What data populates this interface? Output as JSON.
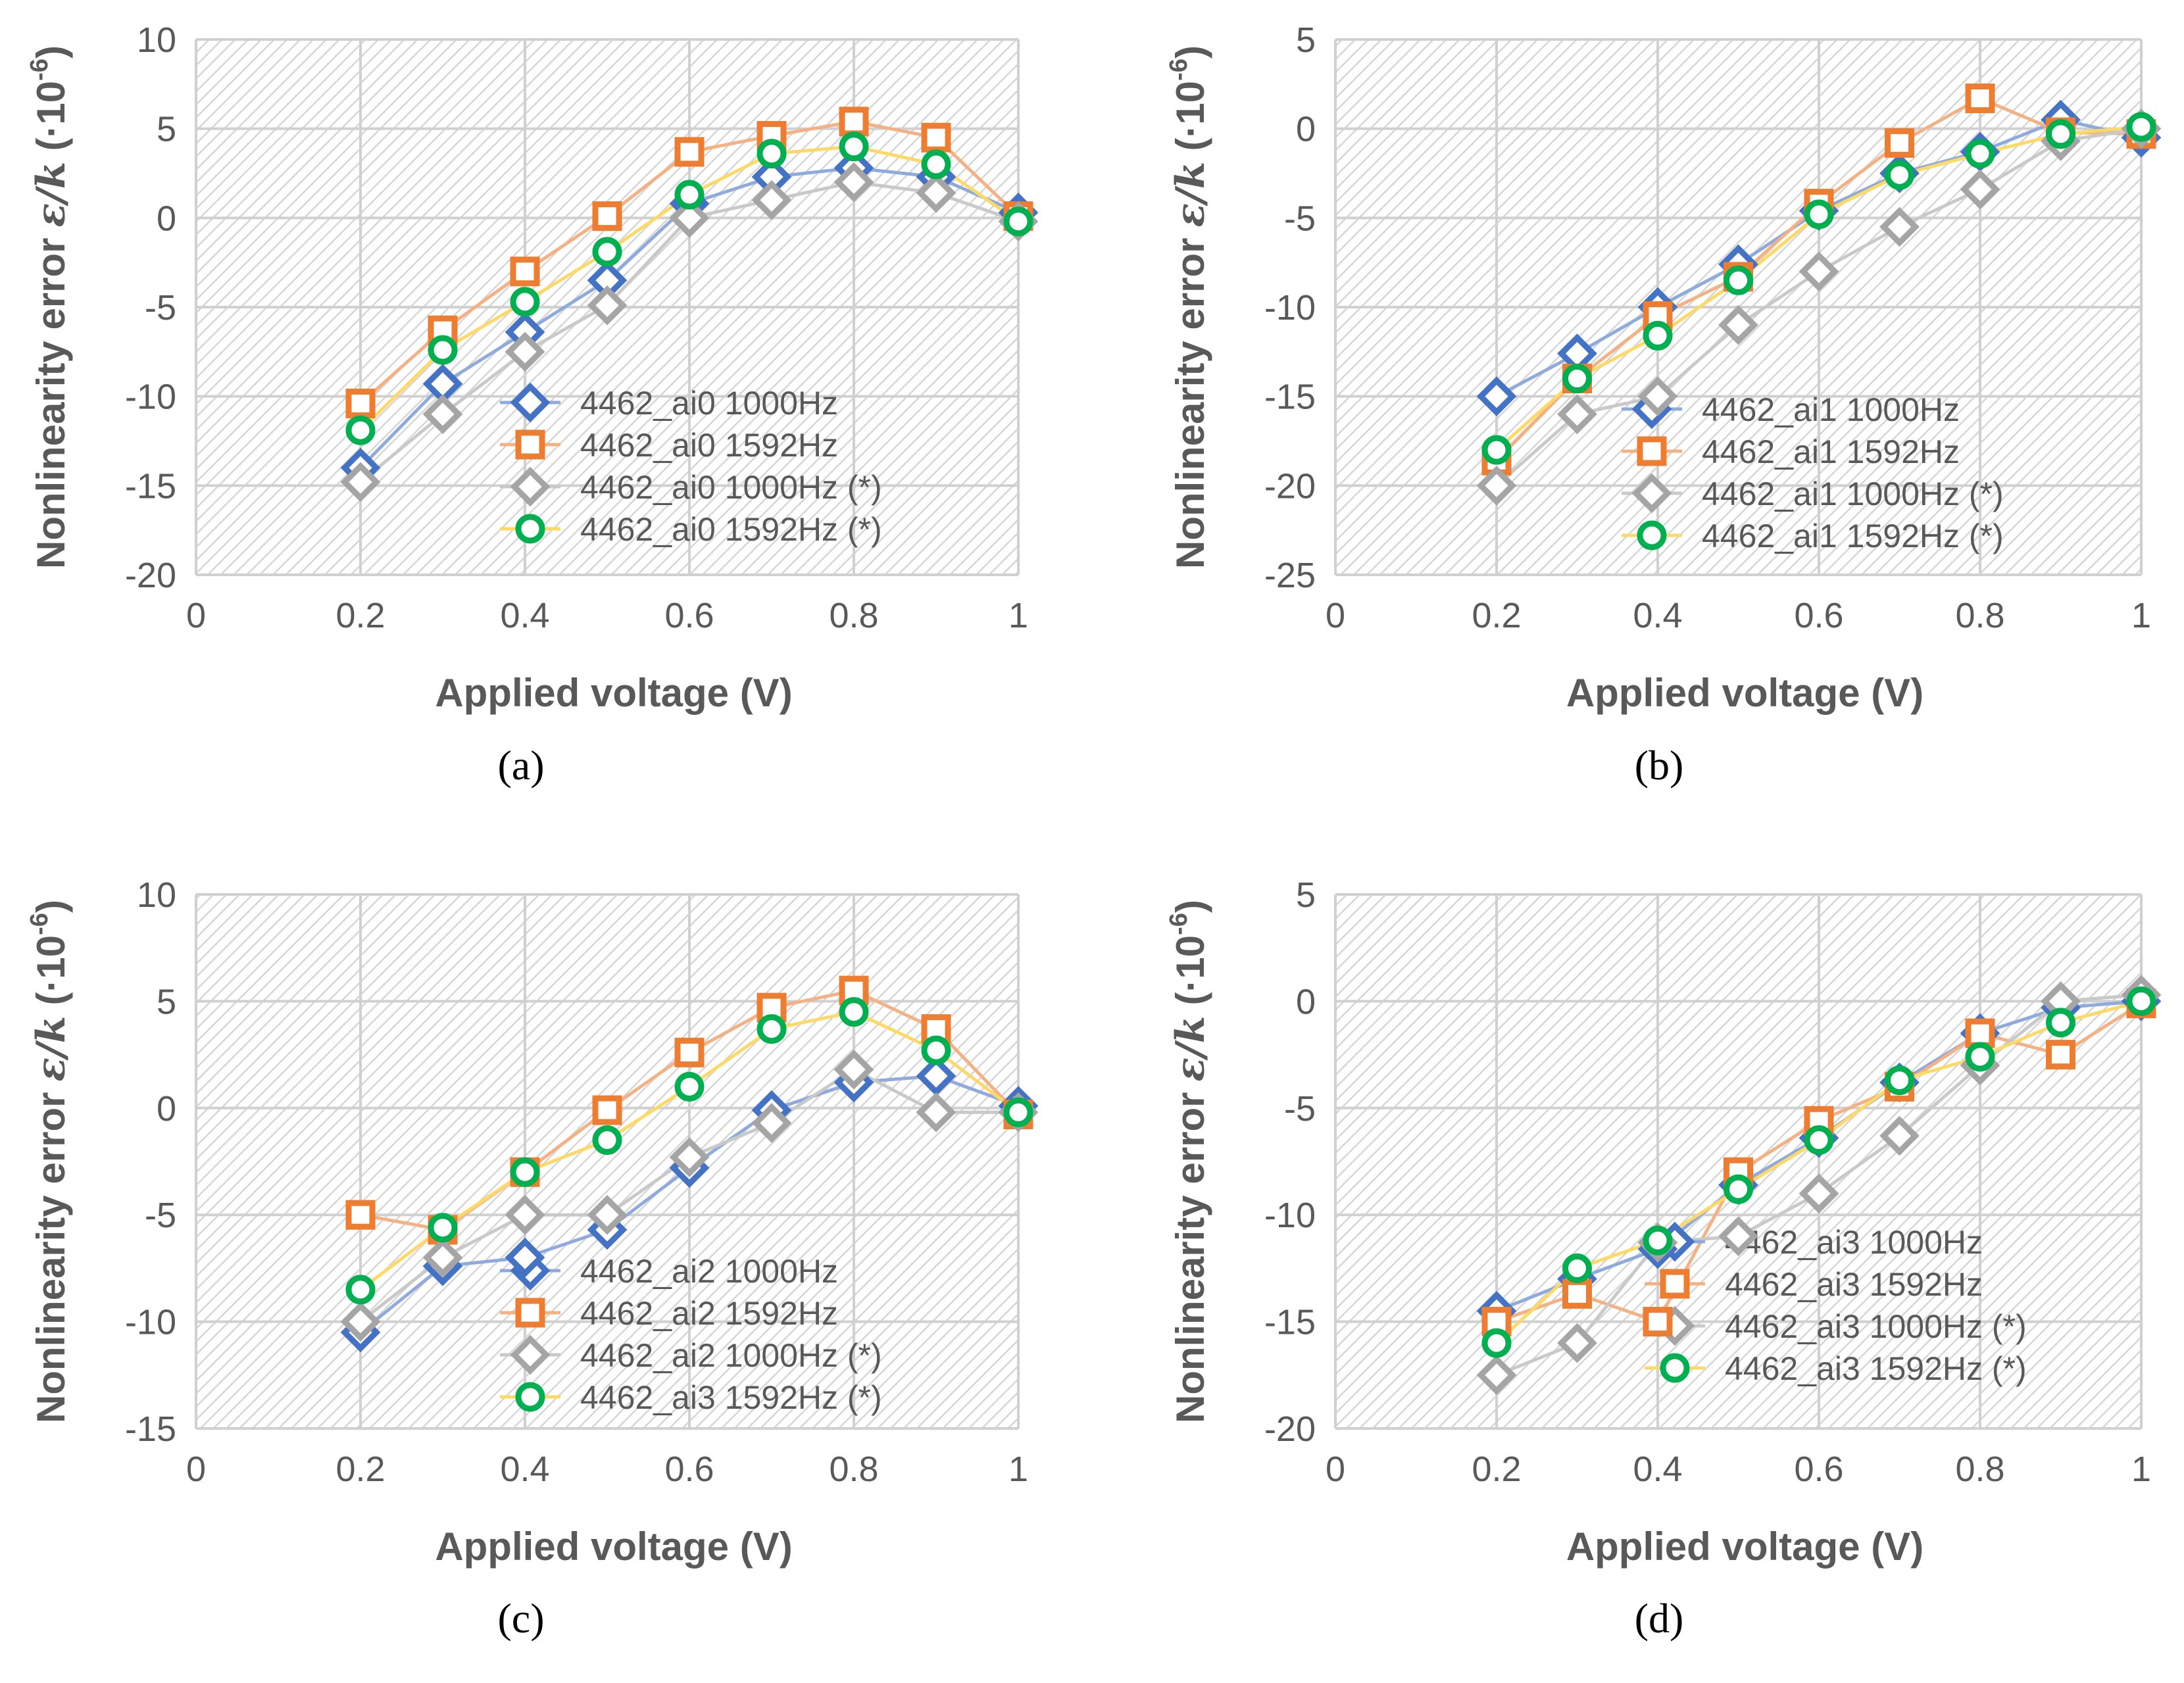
{
  "figure": {
    "y_axis_label": "Nonlinearity error",
    "y_axis_symbol": "ε/k",
    "y_axis_unit_prefix": "(·10",
    "y_axis_unit_exponent": "-6",
    "y_axis_unit_suffix": ")",
    "panel_labels": [
      "(a)",
      "(b)",
      "(c)",
      "(d)"
    ]
  },
  "colors": {
    "blue": "#4472C4",
    "orange": "#ED7D31",
    "gray": "#A5A5A5",
    "green": "#00B050",
    "yellow_line": "#FFC000",
    "grid": "#d0d0d0",
    "hatch": "#d9d9d9",
    "tick_text": "#595959",
    "axis_title": "#595959"
  },
  "chart_data": [
    {
      "id": "a",
      "type": "scatter",
      "xlabel": "Applied voltage (V)",
      "ylabel": "Nonlinearity error ε/k (·10-6)",
      "xlim": [
        0,
        1
      ],
      "ylim": [
        -20,
        10
      ],
      "xticks": [
        0,
        0.2,
        0.4,
        0.6,
        0.8,
        1
      ],
      "xtick_labels": [
        "0",
        "0.2",
        "0.4",
        "0.6",
        "0.8",
        "1"
      ],
      "yticks": [
        -20,
        -15,
        -10,
        -5,
        0,
        5,
        10
      ],
      "ytick_labels": [
        "-20",
        "-15",
        "-10",
        "-5",
        "0",
        "5",
        "10"
      ],
      "grid": true,
      "legend_position": "bottom-right",
      "x": [
        0.2,
        0.3,
        0.4,
        0.5,
        0.6,
        0.7,
        0.8,
        0.9,
        1.0
      ],
      "series": [
        {
          "name": "4462_ai0 1000Hz",
          "marker": "diamond",
          "color": "#4472C4",
          "line_color": "#8FAADC",
          "values": [
            -14,
            -9.3,
            -6.4,
            -3.5,
            0.8,
            2.3,
            2.8,
            2.3,
            0.3
          ]
        },
        {
          "name": "4462_ai0 1592Hz",
          "marker": "square",
          "color": "#ED7D31",
          "line_color": "#F4B183",
          "values": [
            -10.4,
            -6.3,
            -3,
            0.1,
            3.7,
            4.6,
            5.4,
            4.5,
            0.1
          ]
        },
        {
          "name": "4462_ai0 1000Hz (*)",
          "marker": "diamond",
          "color": "#A5A5A5",
          "line_color": "#C9C9C9",
          "values": [
            -14.8,
            -11,
            -7.5,
            -4.9,
            0,
            1,
            2,
            1.4,
            -0.2
          ]
        },
        {
          "name": "4462_ai0 1592Hz (*)",
          "marker": "circle",
          "color": "#00B050",
          "line_color": "#FFD966",
          "values": [
            -11.9,
            -7.4,
            -4.7,
            -1.9,
            1.3,
            3.6,
            4,
            3,
            -0.2
          ]
        }
      ]
    },
    {
      "id": "b",
      "type": "scatter",
      "xlabel": "Applied voltage (V)",
      "ylabel": "Nonlinearity error ε/k (·10-6)",
      "xlim": [
        0,
        1
      ],
      "ylim": [
        -25,
        5
      ],
      "xticks": [
        0,
        0.2,
        0.4,
        0.6,
        0.8,
        1
      ],
      "xtick_labels": [
        "0",
        "0.2",
        "0.4",
        "0.6",
        "0.8",
        "1"
      ],
      "yticks": [
        -25,
        -20,
        -15,
        -10,
        -5,
        0,
        5
      ],
      "ytick_labels": [
        "-25",
        "-20",
        "-15",
        "-10",
        "-5",
        "0",
        "5"
      ],
      "grid": true,
      "legend_position": "bottom-right",
      "x": [
        0.2,
        0.3,
        0.4,
        0.5,
        0.6,
        0.7,
        0.8,
        0.9,
        1.0
      ],
      "series": [
        {
          "name": "4462_ai1 1000Hz",
          "marker": "diamond",
          "color": "#4472C4",
          "line_color": "#8FAADC",
          "values": [
            -15,
            -12.6,
            -10,
            -7.6,
            -4.6,
            -2.5,
            -1.3,
            0.5,
            -0.5
          ]
        },
        {
          "name": "4462_ai1 1592Hz",
          "marker": "square",
          "color": "#ED7D31",
          "line_color": "#F4B183",
          "values": [
            -18.6,
            -14,
            -10.5,
            -8.3,
            -4.2,
            -0.8,
            1.7,
            -0.2,
            -0.3
          ]
        },
        {
          "name": "4462_ai1 1000Hz (*)",
          "marker": "diamond",
          "color": "#A5A5A5",
          "line_color": "#C9C9C9",
          "values": [
            -20,
            -16,
            -15,
            -11,
            -8,
            -5.5,
            -3.4,
            -0.7,
            0
          ]
        },
        {
          "name": "4462_ai1 1592Hz (*)",
          "marker": "circle",
          "color": "#00B050",
          "line_color": "#FFD966",
          "values": [
            -18,
            -14,
            -11.6,
            -8.5,
            -4.8,
            -2.6,
            -1.4,
            -0.3,
            0.1
          ]
        }
      ]
    },
    {
      "id": "c",
      "type": "scatter",
      "xlabel": "Applied voltage (V)",
      "ylabel": "Nonlinearity error ε/k (·10-6)",
      "xlim": [
        0,
        1
      ],
      "ylim": [
        -15,
        10
      ],
      "xticks": [
        0,
        0.2,
        0.4,
        0.6,
        0.8,
        1
      ],
      "xtick_labels": [
        "0",
        "0.2",
        "0.4",
        "0.6",
        "0.8",
        "1"
      ],
      "yticks": [
        -15,
        -10,
        -5,
        0,
        5,
        10
      ],
      "ytick_labels": [
        "-15",
        "-10",
        "-5",
        "0",
        "5",
        "10"
      ],
      "grid": true,
      "legend_position": "bottom-right",
      "x": [
        0.2,
        0.3,
        0.4,
        0.5,
        0.6,
        0.7,
        0.8,
        0.9,
        1.0
      ],
      "series": [
        {
          "name": "4462_ai2 1000Hz",
          "marker": "diamond",
          "color": "#4472C4",
          "line_color": "#8FAADC",
          "values": [
            -10.5,
            -7.4,
            -7,
            -5.7,
            -2.8,
            -0.1,
            1.2,
            1.5,
            0.1
          ]
        },
        {
          "name": "4462_ai2 1592Hz",
          "marker": "square",
          "color": "#ED7D31",
          "line_color": "#F4B183",
          "values": [
            -5,
            -5.7,
            -3,
            -0.1,
            2.6,
            4.7,
            5.5,
            3.7,
            -0.3
          ]
        },
        {
          "name": "4462_ai2 1000Hz (*)",
          "marker": "diamond",
          "color": "#A5A5A5",
          "line_color": "#C9C9C9",
          "values": [
            -10,
            -7,
            -5,
            -5,
            -2.3,
            -0.7,
            1.8,
            -0.2,
            -0.2
          ]
        },
        {
          "name": "4462_ai3 1592Hz (*)",
          "marker": "circle",
          "color": "#00B050",
          "line_color": "#FFD966",
          "values": [
            -8.5,
            -5.6,
            -3,
            -1.5,
            1,
            3.7,
            4.5,
            2.7,
            -0.2
          ]
        }
      ]
    },
    {
      "id": "d",
      "type": "scatter",
      "xlabel": "Applied voltage (V)",
      "ylabel": "Nonlinearity error ε/k (·10-6)",
      "xlim": [
        0,
        1
      ],
      "ylim": [
        -20,
        5
      ],
      "xticks": [
        0,
        0.2,
        0.4,
        0.6,
        0.8,
        1
      ],
      "xtick_labels": [
        "0",
        "0.2",
        "0.4",
        "0.6",
        "0.8",
        "1"
      ],
      "yticks": [
        -20,
        -15,
        -10,
        -5,
        0,
        5
      ],
      "ytick_labels": [
        "-20",
        "-15",
        "-10",
        "-5",
        "0",
        "5"
      ],
      "grid": true,
      "legend_position": "bottom-right",
      "x": [
        0.2,
        0.3,
        0.4,
        0.5,
        0.6,
        0.7,
        0.8,
        0.9,
        1.0
      ],
      "series": [
        {
          "name": "4462_ai3 1000Hz",
          "marker": "diamond",
          "color": "#4472C4",
          "line_color": "#8FAADC",
          "values": [
            -14.5,
            -13,
            -11.6,
            -8.6,
            -6.4,
            -3.8,
            -1.5,
            -0.3,
            0
          ]
        },
        {
          "name": "4462_ai3 1592Hz",
          "marker": "square",
          "color": "#ED7D31",
          "line_color": "#F4B183",
          "values": [
            -15,
            -13.7,
            -15,
            -8,
            -5.6,
            -4,
            -1.5,
            -2.5,
            -0.1
          ]
        },
        {
          "name": "4462_ai3 1000Hz (*)",
          "marker": "diamond",
          "color": "#A5A5A5",
          "line_color": "#C9C9C9",
          "values": [
            -17.5,
            -16,
            -11.3,
            -11,
            -9,
            -6.3,
            -3,
            0,
            0.3
          ]
        },
        {
          "name": "4462_ai3 1592Hz (*)",
          "marker": "circle",
          "color": "#00B050",
          "line_color": "#FFD966",
          "values": [
            -16,
            -12.5,
            -11.2,
            -8.8,
            -6.5,
            -3.7,
            -2.6,
            -1,
            0
          ]
        }
      ]
    }
  ]
}
